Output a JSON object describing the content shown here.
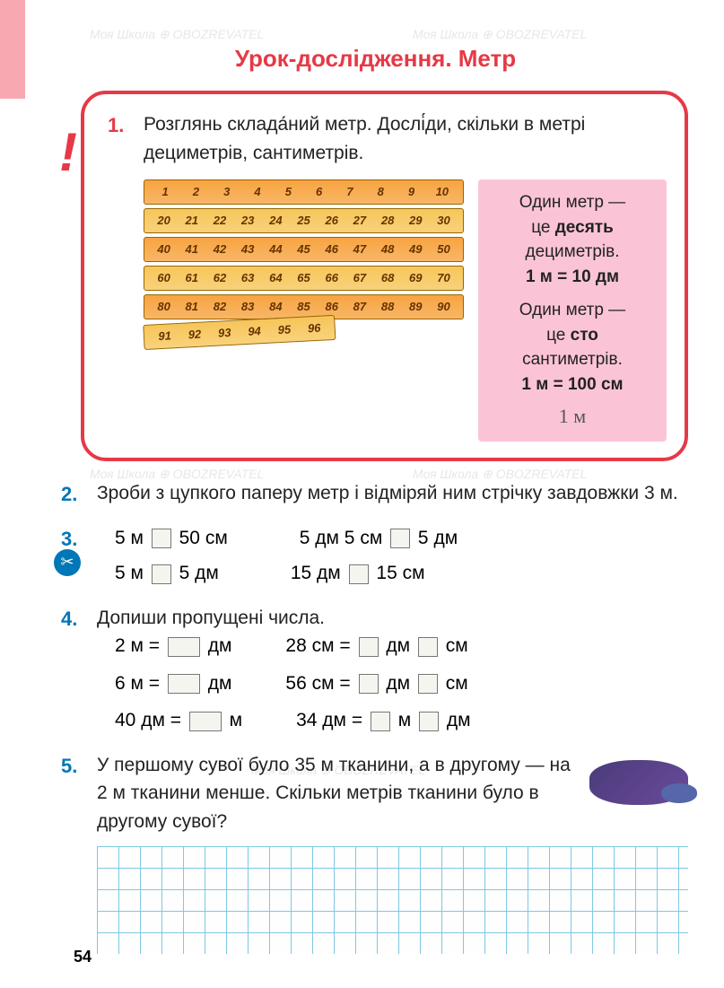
{
  "page_number": "54",
  "title": "Урок-дослідження. Метр",
  "watermarks": [
    "Моя Школа ⊕ OBOZREVATEL"
  ],
  "task1": {
    "num": "1.",
    "text": "Розглянь склада́ний метр. Дослі́ди, скільки в метрі дециметрів, сантиметрів.",
    "ruler_rows": [
      [
        "1",
        "2",
        "3",
        "4",
        "5",
        "6",
        "7",
        "8",
        "9",
        "10"
      ],
      [
        "20",
        "21",
        "22",
        "23",
        "24",
        "25",
        "26",
        "27",
        "28",
        "29",
        "30"
      ],
      [
        "40",
        "41",
        "42",
        "43",
        "44",
        "45",
        "46",
        "47",
        "48",
        "49",
        "50"
      ],
      [
        "60",
        "61",
        "62",
        "63",
        "64",
        "65",
        "66",
        "67",
        "68",
        "69",
        "70"
      ],
      [
        "80",
        "81",
        "82",
        "83",
        "84",
        "85",
        "86",
        "87",
        "88",
        "89",
        "90"
      ],
      [
        "91",
        "92",
        "93",
        "94",
        "95",
        "96"
      ]
    ],
    "ruler_colors": [
      "#f7a441",
      "#f7c65a",
      "#f7a441",
      "#f7c65a",
      "#f7a441",
      "#f7c65a"
    ],
    "info": {
      "line1": "Один метр —",
      "line2": "це ",
      "bold2": "десять",
      "line3": "дециметрів.",
      "eq1": "1 м = 10 дм",
      "line4": "Один метр —",
      "line5": "це ",
      "bold5": "сто",
      "line6": "сантиметрів.",
      "eq2": "1 м = 100 см",
      "handwrite": "1 м"
    }
  },
  "task2": {
    "num": "2.",
    "text": "Зроби з цупкого паперу метр і відміряй ним стрічку завдовжки 3 м."
  },
  "task3": {
    "num": "3.",
    "rows": [
      {
        "left": "5 м ▢ 50 см",
        "right": "5 дм 5 см ▢ 5 дм"
      },
      {
        "left": "5 м ▢ 5 дм",
        "right": "15 дм ▢ 15 см"
      }
    ]
  },
  "task4": {
    "num": "4.",
    "text": "Допиши пропущені числа.",
    "rows": [
      {
        "left_a": "2 м = ",
        "left_b": " дм",
        "right_a": "28 см = ",
        "right_mid": " дм ",
        "right_b": " см"
      },
      {
        "left_a": "6 м = ",
        "left_b": " дм",
        "right_a": "56 см = ",
        "right_mid": " дм ",
        "right_b": " см"
      },
      {
        "left_a": "40 дм = ",
        "left_b": " м",
        "right_a": "34 дм = ",
        "right_mid": " м ",
        "right_b": " дм"
      }
    ]
  },
  "task5": {
    "num": "5.",
    "text": "У першому сувої було 35 м тканини, а в другому — на 2 м тканини менше. Скільки метрів тканини було в другому сувої?"
  },
  "colors": {
    "accent_red": "#e63946",
    "accent_blue": "#0077b6",
    "pink_box": "#fbc4d6",
    "grid_line": "#7ec8e3"
  }
}
